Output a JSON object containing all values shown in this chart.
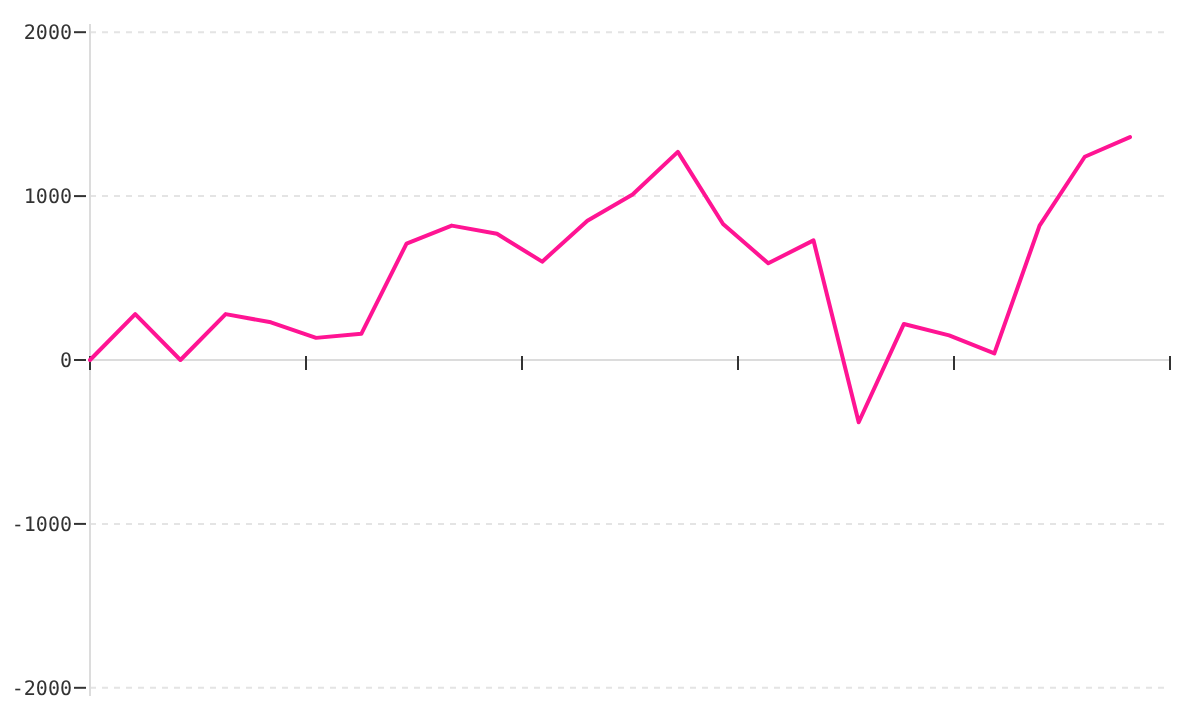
{
  "chart_data": {
    "type": "line",
    "categories": [
      null,
      null,
      null,
      null,
      null,
      null,
      null,
      null,
      null,
      null,
      null,
      null,
      null,
      null,
      null,
      null,
      null,
      null,
      null,
      null,
      null,
      null,
      null,
      null
    ],
    "series": [
      {
        "color": "#ff1493",
        "values": [
          0,
          280,
          0,
          280,
          230,
          135,
          160,
          710,
          820,
          770,
          600,
          850,
          1010,
          1270,
          830,
          590,
          730,
          -380,
          220,
          150,
          40,
          820,
          1240,
          1360
        ]
      }
    ],
    "ylim": [
      -2050,
      2050
    ],
    "yticks": [
      -2000,
      -1000,
      0,
      1000,
      2000
    ],
    "grid": "y",
    "tick_labels": "y",
    "marker": "none",
    "line_style": "solid"
  }
}
